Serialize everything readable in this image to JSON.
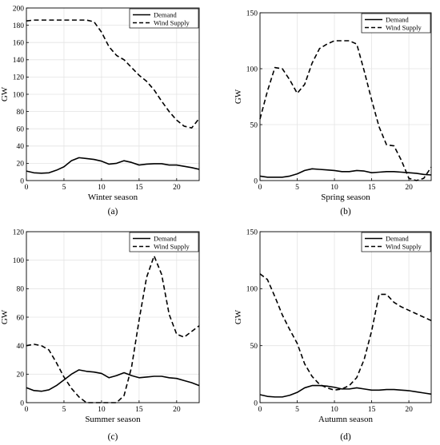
{
  "figure": {
    "panels": [
      {
        "caption": "(a)",
        "chart_data": {
          "type": "line",
          "xlabel": "Winter season",
          "ylabel": "GW",
          "xlim": [
            0,
            23
          ],
          "ylim": [
            0,
            200
          ],
          "xticks": [
            0,
            5,
            10,
            15,
            20
          ],
          "yticks": [
            0,
            20,
            40,
            60,
            80,
            100,
            120,
            140,
            160,
            180,
            200
          ],
          "grid": true,
          "legend_position": "top-right",
          "series": [
            {
              "name": "Demand",
              "style": "solid",
              "x": [
                0,
                1,
                2,
                3,
                4,
                5,
                6,
                7,
                8,
                9,
                10,
                11,
                12,
                13,
                14,
                15,
                16,
                17,
                18,
                19,
                20,
                21,
                22,
                23
              ],
              "y": [
                11,
                9,
                8.5,
                9,
                12,
                16,
                23,
                26.5,
                25.5,
                24.5,
                22.5,
                19,
                20,
                23,
                21,
                18,
                19,
                19.5,
                19.5,
                18,
                18,
                16.5,
                15,
                13
              ]
            },
            {
              "name": "Wind Supply",
              "style": "dashed",
              "x": [
                0,
                1,
                2,
                3,
                4,
                5,
                6,
                7,
                8,
                9,
                10,
                11,
                12,
                13,
                14,
                15,
                16,
                17,
                18,
                19,
                20,
                21,
                22,
                23
              ],
              "y": [
                185,
                186,
                186,
                186,
                186,
                186,
                186,
                186,
                186,
                184,
                172,
                155,
                145,
                140,
                131,
                122,
                115,
                105,
                92,
                80,
                70,
                63,
                61,
                72
              ]
            }
          ]
        }
      },
      {
        "caption": "(b)",
        "chart_data": {
          "type": "line",
          "xlabel": "Spring season",
          "ylabel": "GW",
          "xlim": [
            0,
            23
          ],
          "ylim": [
            0,
            150
          ],
          "xticks": [
            0,
            5,
            10,
            15,
            20
          ],
          "yticks": [
            0,
            50,
            100,
            150
          ],
          "grid": true,
          "legend_position": "top-right",
          "series": [
            {
              "name": "Demand",
              "style": "solid",
              "x": [
                0,
                1,
                2,
                3,
                4,
                5,
                6,
                7,
                8,
                9,
                10,
                11,
                12,
                13,
                14,
                15,
                16,
                17,
                18,
                19,
                20,
                21,
                22,
                23
              ],
              "y": [
                4,
                3,
                3,
                3,
                4,
                6,
                9,
                10.5,
                10,
                9.5,
                9,
                8,
                8,
                9,
                8.5,
                7,
                7.5,
                8,
                8,
                7.5,
                7,
                6.5,
                5.5,
                5
              ]
            },
            {
              "name": "Wind Supply",
              "style": "dashed",
              "x": [
                0,
                1,
                2,
                3,
                4,
                5,
                6,
                7,
                8,
                9,
                10,
                11,
                12,
                13,
                14,
                15,
                16,
                17,
                18,
                19,
                20,
                21,
                22,
                23
              ],
              "y": [
                55,
                80,
                101,
                100,
                90,
                78,
                86,
                105,
                118,
                122,
                125,
                125,
                125,
                122,
                98,
                72,
                48,
                32,
                31,
                18,
                2,
                0,
                2,
                12
              ]
            }
          ]
        }
      },
      {
        "caption": "(c)",
        "chart_data": {
          "type": "line",
          "xlabel": "Summer season",
          "ylabel": "GW",
          "xlim": [
            0,
            23
          ],
          "ylim": [
            0,
            120
          ],
          "xticks": [
            0,
            5,
            10,
            15,
            20
          ],
          "yticks": [
            0,
            20,
            40,
            60,
            80,
            100,
            120
          ],
          "grid": true,
          "legend_position": "top-right",
          "series": [
            {
              "name": "Demand",
              "style": "solid",
              "x": [
                0,
                1,
                2,
                3,
                4,
                5,
                6,
                7,
                8,
                9,
                10,
                11,
                12,
                13,
                14,
                15,
                16,
                17,
                18,
                19,
                20,
                21,
                22,
                23
              ],
              "y": [
                10.5,
                8.5,
                8,
                9,
                12,
                16,
                20,
                23,
                22,
                21.5,
                20.5,
                17.5,
                19,
                21,
                19,
                17.5,
                18,
                18.5,
                18.5,
                17.5,
                17,
                15.5,
                14,
                12
              ]
            },
            {
              "name": "Wind Supply",
              "style": "dashed",
              "x": [
                0,
                1,
                2,
                3,
                4,
                5,
                6,
                7,
                8,
                9,
                10,
                11,
                12,
                13,
                14,
                15,
                16,
                17,
                18,
                19,
                20,
                21,
                22,
                23
              ],
              "y": [
                40,
                41,
                40,
                37,
                28,
                18,
                10,
                4,
                0,
                0,
                0,
                0,
                0,
                5,
                25,
                58,
                88,
                103,
                90,
                62,
                48,
                46,
                50,
                54
              ]
            }
          ]
        }
      },
      {
        "caption": "(d)",
        "chart_data": {
          "type": "line",
          "xlabel": "Autumn season",
          "ylabel": "GW",
          "xlim": [
            0,
            23
          ],
          "ylim": [
            0,
            150
          ],
          "xticks": [
            0,
            5,
            10,
            15,
            20
          ],
          "yticks": [
            0,
            50,
            100,
            150
          ],
          "grid": true,
          "legend_position": "top-right",
          "series": [
            {
              "name": "Demand",
              "style": "solid",
              "x": [
                0,
                1,
                2,
                3,
                4,
                5,
                6,
                7,
                8,
                9,
                10,
                11,
                12,
                13,
                14,
                15,
                16,
                17,
                18,
                19,
                20,
                21,
                22,
                23
              ],
              "y": [
                7,
                5.5,
                5,
                5,
                6.5,
                9,
                13,
                15,
                15,
                14.5,
                13.5,
                12,
                12,
                13,
                12,
                11,
                11,
                11.5,
                11.5,
                11,
                10.5,
                9.5,
                8.5,
                7.5
              ]
            },
            {
              "name": "Wind Supply",
              "style": "dashed",
              "x": [
                0,
                1,
                2,
                3,
                4,
                5,
                6,
                7,
                8,
                9,
                10,
                11,
                12,
                13,
                14,
                15,
                16,
                17,
                18,
                19,
                20,
                21,
                22,
                23
              ],
              "y": [
                113,
                108,
                93,
                77,
                64,
                52,
                34,
                23,
                16,
                13,
                11,
                12,
                15,
                22,
                38,
                63,
                95,
                95,
                88,
                84,
                81,
                78,
                75,
                72
              ]
            }
          ]
        }
      }
    ]
  }
}
